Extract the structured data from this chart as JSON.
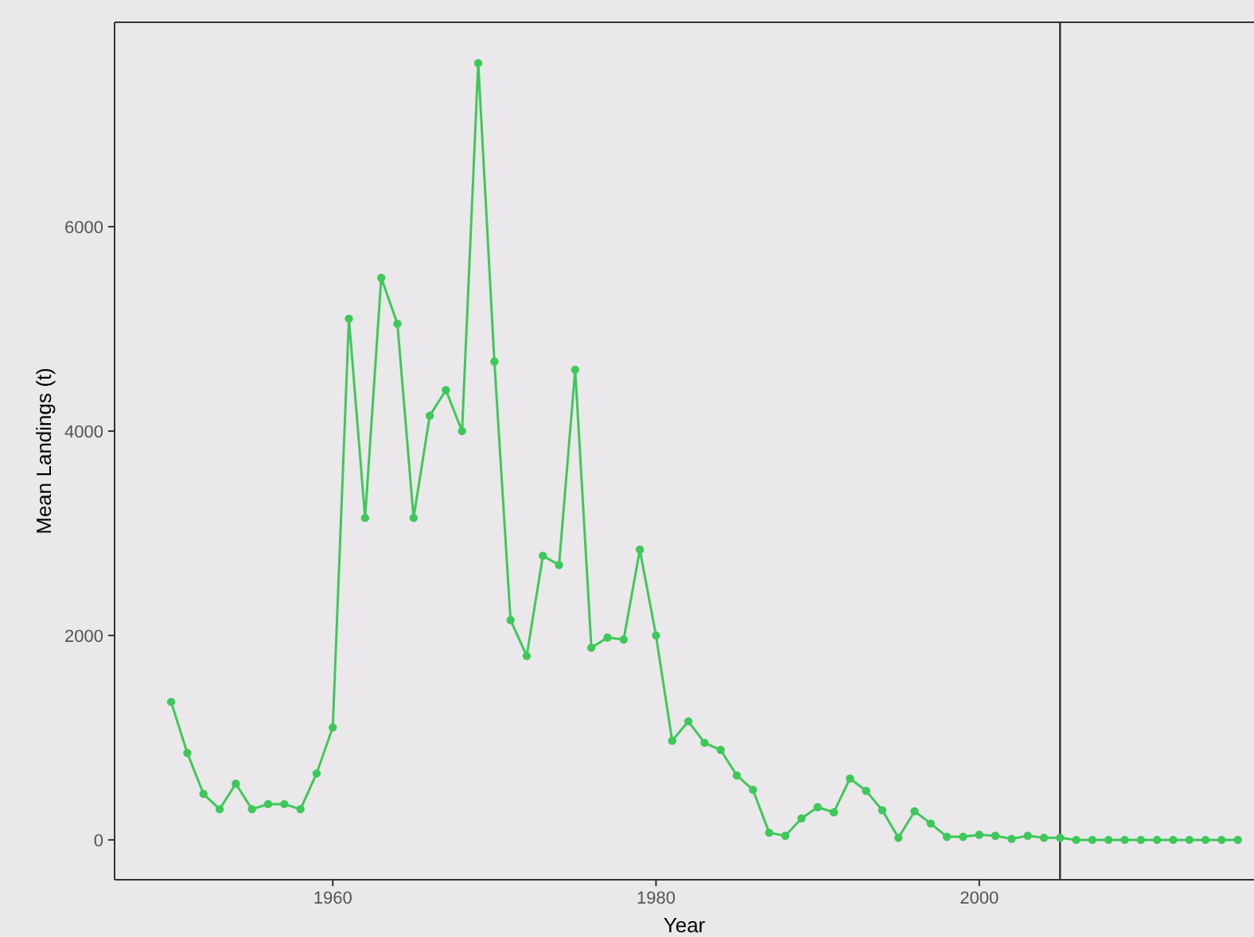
{
  "chart_data": {
    "type": "line",
    "xlabel": "Year",
    "ylabel": "Mean Landings (t)",
    "x": [
      1950,
      1951,
      1952,
      1953,
      1954,
      1955,
      1956,
      1957,
      1958,
      1959,
      1960,
      1961,
      1962,
      1963,
      1964,
      1965,
      1966,
      1967,
      1968,
      1969,
      1970,
      1971,
      1972,
      1973,
      1974,
      1975,
      1976,
      1977,
      1978,
      1979,
      1980,
      1981,
      1982,
      1983,
      1984,
      1985,
      1986,
      1987,
      1988,
      1989,
      1990,
      1991,
      1992,
      1993,
      1994,
      1995,
      1996,
      1997,
      1998,
      1999,
      2000,
      2001,
      2002,
      2003,
      2004,
      2005,
      2006,
      2007,
      2008,
      2009,
      2010,
      2011,
      2012,
      2013,
      2014,
      2015,
      2016
    ],
    "series": [
      {
        "color": "#3ec85a",
        "values": [
          1350,
          850,
          450,
          300,
          550,
          300,
          350,
          350,
          300,
          650,
          1100,
          5100,
          3150,
          5500,
          5050,
          3150,
          4150,
          4400,
          4000,
          7600,
          4680,
          2150,
          1800,
          2780,
          2690,
          4600,
          1880,
          1980,
          1960,
          2840,
          2000,
          970,
          1160,
          950,
          880,
          630,
          490,
          70,
          40,
          210,
          320,
          270,
          600,
          480,
          290,
          20,
          280,
          160,
          30,
          30,
          50,
          40,
          10,
          40,
          20,
          20,
          0,
          0,
          0,
          0,
          0,
          0,
          0,
          0,
          0,
          0,
          0
        ]
      }
    ],
    "xlim": [
      1946.5,
      2017
    ],
    "xticks": [
      1960,
      1980,
      2000
    ],
    "ylim": [
      -390,
      8000
    ],
    "yticks": [
      0,
      2000,
      4000,
      6000
    ],
    "ref_lines": [
      {
        "axis": "x",
        "value": 2005,
        "color": "#333333"
      }
    ],
    "grid": false,
    "marker": "circle",
    "line_style": "solid"
  }
}
